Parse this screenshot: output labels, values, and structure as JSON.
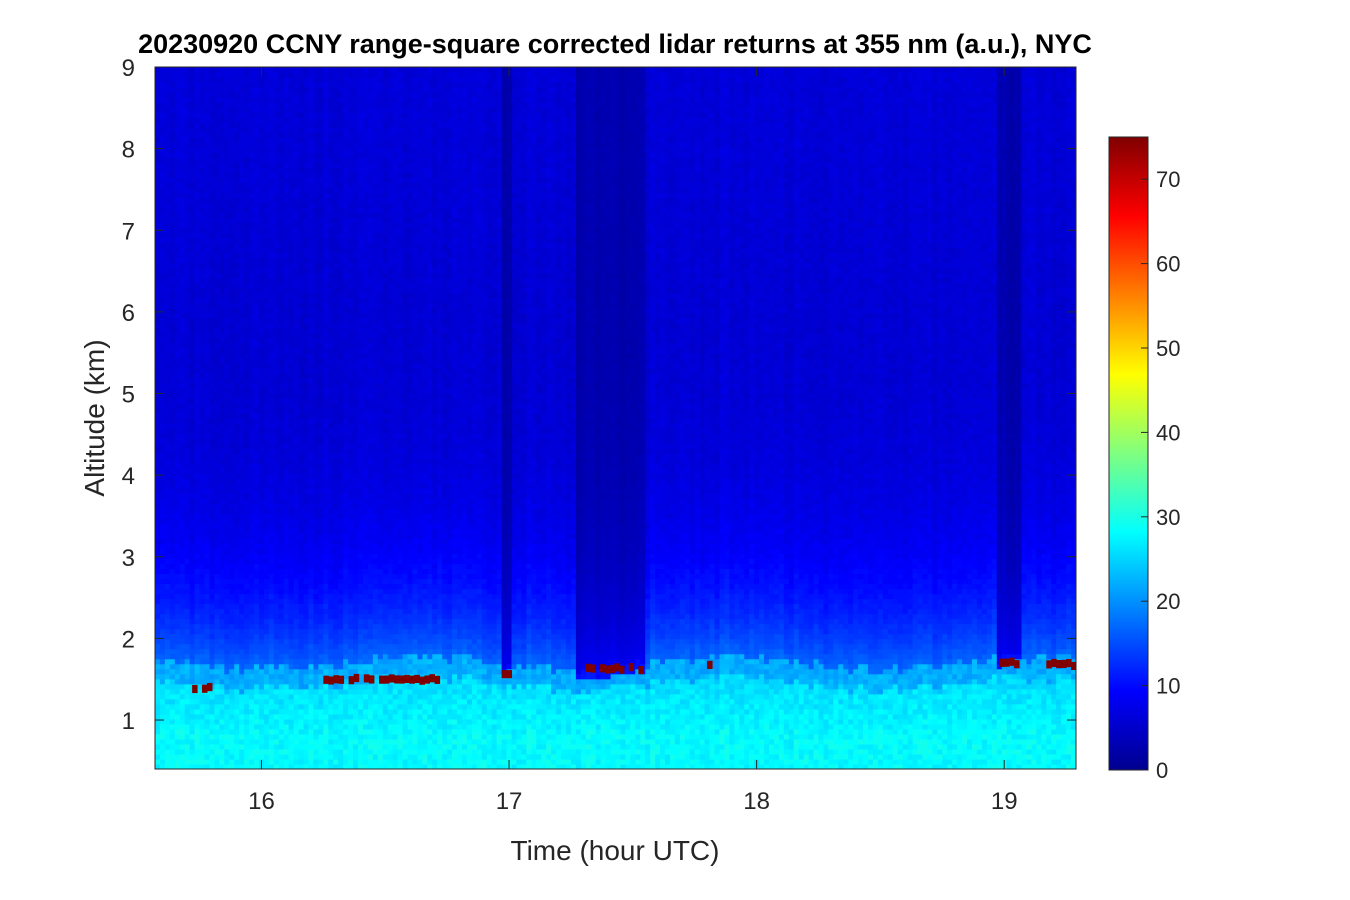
{
  "chart_data": {
    "type": "heatmap",
    "title": "20230920 CCNY range-square corrected lidar returns at 355 nm (a.u.), NYC",
    "xlabel": "Time (hour UTC)",
    "ylabel": "Altitude (km)",
    "xlim": [
      15.57,
      19.29
    ],
    "ylim": [
      0.4,
      9
    ],
    "xticks": [
      16,
      17,
      18,
      19
    ],
    "xtick_labels": [
      "16",
      "17",
      "18",
      "19"
    ],
    "yticks": [
      1,
      2,
      3,
      4,
      5,
      6,
      7,
      8,
      9
    ],
    "ytick_labels": [
      "1",
      "2",
      "3",
      "4",
      "5",
      "6",
      "7",
      "8",
      "9"
    ],
    "colormap": "jet",
    "colorbar": {
      "range": [
        0,
        75
      ],
      "ticks": [
        0,
        10,
        20,
        30,
        40,
        50,
        60,
        70
      ],
      "tick_labels": [
        "0",
        "10",
        "20",
        "30",
        "40",
        "50",
        "60",
        "70"
      ],
      "placement": "right"
    },
    "features": {
      "boundary_layer_top_km": 1.6,
      "near_surface_value": 28,
      "upper_air_value": 5,
      "cloud_value": 75,
      "clouds": [
        {
          "t_start": 15.72,
          "t_end": 15.86,
          "alt_km": 1.4
        },
        {
          "t_start": 16.25,
          "t_end": 16.74,
          "alt_km": 1.5
        },
        {
          "t_start": 16.97,
          "t_end": 17.01,
          "alt_km": 1.55
        },
        {
          "t_start": 17.27,
          "t_end": 17.6,
          "alt_km": 1.63
        },
        {
          "t_start": 17.8,
          "t_end": 17.82,
          "alt_km": 1.66
        },
        {
          "t_start": 18.98,
          "t_end": 19.06,
          "alt_km": 1.7
        },
        {
          "t_start": 19.17,
          "t_end": 19.29,
          "alt_km": 1.68
        }
      ],
      "attenuated_columns": [
        {
          "t_start": 17.27,
          "t_end": 17.54
        },
        {
          "t_start": 16.97,
          "t_end": 17.01
        },
        {
          "t_start": 18.98,
          "t_end": 19.06
        }
      ]
    }
  }
}
